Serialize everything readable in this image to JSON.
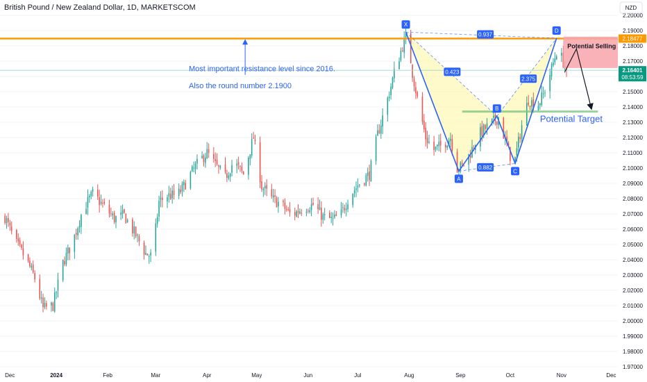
{
  "header": {
    "title": "British Pound / New Zealand Dollar, 1D, MARKETSCOM"
  },
  "currency_button": "NZD",
  "colors": {
    "up": "#26a69a",
    "down": "#ef5350",
    "resistance": "#ff9800",
    "pattern": "#2962ff",
    "pattern_fill": "#fff59d",
    "sell_zone": "#f8a5aa",
    "target": "#81c784",
    "current": "#089981"
  },
  "chart_data": {
    "type": "candlestick",
    "title": "British Pound / New Zealand Dollar, 1D, MARKETSCOM",
    "y_axis": {
      "min": 1.97,
      "max": 2.2,
      "side": "right",
      "ticks": [
        "2.20000",
        "2.19000",
        "2.18000",
        "2.17000",
        "2.16000",
        "2.15000",
        "2.14000",
        "2.13000",
        "2.12000",
        "2.11000",
        "2.10000",
        "2.09000",
        "2.08000",
        "2.07000",
        "2.06000",
        "2.05000",
        "2.04000",
        "2.03000",
        "2.02000",
        "2.01000",
        "2.00000",
        "1.99000",
        "1.98000",
        "1.97000"
      ]
    },
    "x_axis": {
      "labels": [
        {
          "label": "Dec",
          "day": 0
        },
        {
          "label": "2024",
          "day": 31
        },
        {
          "label": "Feb",
          "day": 62
        },
        {
          "label": "Mar",
          "day": 91
        },
        {
          "label": "Apr",
          "day": 122
        },
        {
          "label": "May",
          "day": 152
        },
        {
          "label": "Jun",
          "day": 183
        },
        {
          "label": "Jul",
          "day": 213
        },
        {
          "label": "Aug",
          "day": 244
        },
        {
          "label": "Sep",
          "day": 275
        },
        {
          "label": "Oct",
          "day": 305
        },
        {
          "label": "Nov",
          "day": 336
        },
        {
          "label": "Dec",
          "day": 366
        }
      ]
    },
    "close_anchors": [
      {
        "day": 0,
        "value": 2.068
      },
      {
        "day": 6,
        "value": 2.052
      },
      {
        "day": 13,
        "value": 2.04
      },
      {
        "day": 18,
        "value": 2.028
      },
      {
        "day": 23,
        "value": 2.008
      },
      {
        "day": 29,
        "value": 2.01
      },
      {
        "day": 35,
        "value": 2.038
      },
      {
        "day": 41,
        "value": 2.052
      },
      {
        "day": 47,
        "value": 2.073
      },
      {
        "day": 53,
        "value": 2.083
      },
      {
        "day": 58,
        "value": 2.077
      },
      {
        "day": 66,
        "value": 2.067
      },
      {
        "day": 72,
        "value": 2.069
      },
      {
        "day": 79,
        "value": 2.056
      },
      {
        "day": 85,
        "value": 2.044
      },
      {
        "day": 89,
        "value": 2.042
      },
      {
        "day": 93,
        "value": 2.078
      },
      {
        "day": 98,
        "value": 2.082
      },
      {
        "day": 104,
        "value": 2.082
      },
      {
        "day": 108,
        "value": 2.088
      },
      {
        "day": 112,
        "value": 2.096
      },
      {
        "day": 117,
        "value": 2.104
      },
      {
        "day": 122,
        "value": 2.11
      },
      {
        "day": 127,
        "value": 2.102
      },
      {
        "day": 133,
        "value": 2.094
      },
      {
        "day": 138,
        "value": 2.104
      },
      {
        "day": 144,
        "value": 2.096
      },
      {
        "day": 150,
        "value": 2.12
      },
      {
        "day": 155,
        "value": 2.088
      },
      {
        "day": 161,
        "value": 2.08
      },
      {
        "day": 167,
        "value": 2.076
      },
      {
        "day": 173,
        "value": 2.069
      },
      {
        "day": 180,
        "value": 2.074
      },
      {
        "day": 186,
        "value": 2.076
      },
      {
        "day": 192,
        "value": 2.068
      },
      {
        "day": 198,
        "value": 2.066
      },
      {
        "day": 203,
        "value": 2.07
      },
      {
        "day": 208,
        "value": 2.082
      },
      {
        "day": 214,
        "value": 2.09
      },
      {
        "day": 220,
        "value": 2.096
      },
      {
        "day": 225,
        "value": 2.122
      },
      {
        "day": 230,
        "value": 2.141
      },
      {
        "day": 235,
        "value": 2.162
      },
      {
        "day": 240,
        "value": 2.18
      },
      {
        "day": 243,
        "value": 2.187
      },
      {
        "day": 246,
        "value": 2.162
      },
      {
        "day": 250,
        "value": 2.14
      },
      {
        "day": 254,
        "value": 2.12
      },
      {
        "day": 259,
        "value": 2.112
      },
      {
        "day": 264,
        "value": 2.115
      },
      {
        "day": 269,
        "value": 2.12
      },
      {
        "day": 273,
        "value": 2.1
      },
      {
        "day": 276,
        "value": 2.101
      },
      {
        "day": 281,
        "value": 2.11
      },
      {
        "day": 286,
        "value": 2.122
      },
      {
        "day": 292,
        "value": 2.128
      },
      {
        "day": 298,
        "value": 2.133
      },
      {
        "day": 302,
        "value": 2.118
      },
      {
        "day": 305,
        "value": 2.108
      },
      {
        "day": 308,
        "value": 2.106
      },
      {
        "day": 312,
        "value": 2.128
      },
      {
        "day": 316,
        "value": 2.145
      },
      {
        "day": 321,
        "value": 2.14
      },
      {
        "day": 325,
        "value": 2.148
      },
      {
        "day": 330,
        "value": 2.165
      },
      {
        "day": 334,
        "value": 2.18
      },
      {
        "day": 336,
        "value": 2.172
      },
      {
        "day": 339,
        "value": 2.164
      }
    ],
    "resistance_level": 2.18477,
    "current_price": 2.16401,
    "countdown": "08:53:59",
    "xabcd_pattern": {
      "points": [
        {
          "label": "X",
          "day": 242,
          "value": 2.189
        },
        {
          "label": "A",
          "day": 274,
          "value": 2.098
        },
        {
          "label": "B",
          "day": 297,
          "value": 2.134
        },
        {
          "label": "C",
          "day": 308,
          "value": 2.103
        },
        {
          "label": "D",
          "day": 333,
          "value": 2.185
        }
      ],
      "ratios": [
        {
          "label": "0.937",
          "day": 290,
          "value": 2.1875
        },
        {
          "label": "0.423",
          "day": 270,
          "value": 2.163
        },
        {
          "label": "0.882",
          "day": 290,
          "value": 2.1005
        },
        {
          "label": "2.375",
          "day": 316,
          "value": 2.1585
        }
      ]
    },
    "annotations": {
      "resistance_note_line1": "Most important resistance level since 2016.",
      "resistance_note_line2": "Also the round number 2.1900",
      "sell_label": "Potential Selling Area",
      "target_label": "Potential Target",
      "target_level": 2.137
    }
  }
}
